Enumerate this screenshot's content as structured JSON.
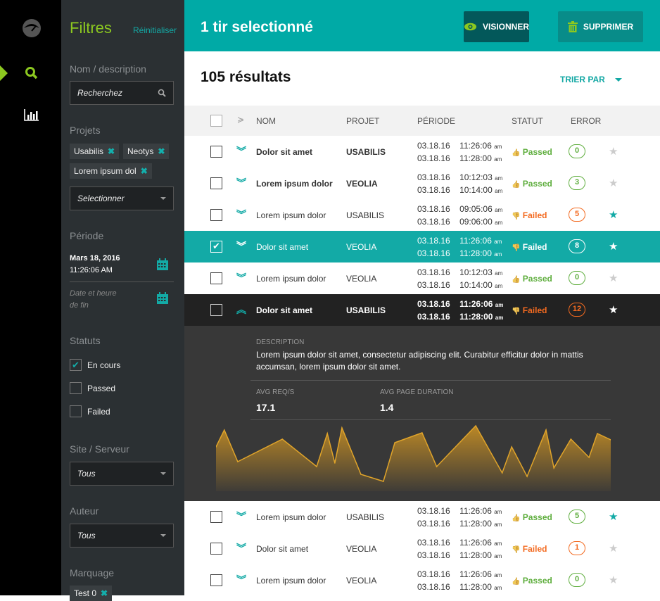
{
  "rail": {
    "icons": [
      "logo-icon",
      "search-icon",
      "chart-icon"
    ],
    "active": "search"
  },
  "sidebar": {
    "title": "Filtres",
    "reset": "Réinitialiser",
    "name_label": "Nom / description",
    "search_placeholder": "Recherchez",
    "projects_label": "Projets",
    "project_tags": [
      "Usabilis",
      "Neotys",
      "Lorem ipsum dol"
    ],
    "project_select": "Selectionner",
    "period_label": "Période",
    "start_date": "Mars 18, 2016",
    "start_time": "11:26:06 AM",
    "end_placeholder_1": "Date et heure",
    "end_placeholder_2": "de fin",
    "status_label": "Statuts",
    "statuses": [
      {
        "label": "En cours",
        "checked": true
      },
      {
        "label": "Passed",
        "checked": false
      },
      {
        "label": "Failed",
        "checked": false
      }
    ],
    "site_label": "Site / Serveur",
    "site_value": "Tous",
    "author_label": "Auteur",
    "author_value": "Tous",
    "marking_label": "Marquage",
    "marking_tags": [
      "Test 0"
    ]
  },
  "header": {
    "title": "1 tir selectionné",
    "view": "VISIONNER",
    "delete": "SUPPRIMER"
  },
  "results": {
    "count": "105 résultats",
    "sort": "TRIER PAR"
  },
  "table": {
    "columns": {
      "name": "NOM",
      "project": "PROJET",
      "period": "PÉRIODE",
      "status": "STATUT",
      "error": "ERROR"
    },
    "rows": [
      {
        "name": "Dolor sit amet",
        "project": "USABILIS",
        "d1": "03.18.16",
        "t1": "11:26:06",
        "d2": "03.18.16",
        "t2": "11:28:00",
        "ampm": "am",
        "status": "Passed",
        "error": "0",
        "starred": false,
        "bold": true,
        "selected": false,
        "expanded": false
      },
      {
        "name": "Lorem ipsum dolor",
        "project": "VEOLIA",
        "d1": "03.18.16",
        "t1": "10:12:03",
        "d2": "03.18.16",
        "t2": "10:14:00",
        "ampm": "am",
        "status": "Passed",
        "error": "3",
        "starred": false,
        "bold": true,
        "selected": false,
        "expanded": false
      },
      {
        "name": "Lorem ipsum dolor",
        "project": "USABILIS",
        "d1": "03.18.16",
        "t1": "09:05:06",
        "d2": "03.18.16",
        "t2": "09:06:00",
        "ampm": "am",
        "status": "Failed",
        "error": "5",
        "starred": true,
        "bold": false,
        "selected": false,
        "expanded": false
      },
      {
        "name": "Dolor sit amet",
        "project": "VEOLIA",
        "d1": "03.18.16",
        "t1": "11:26:06",
        "d2": "03.18.16",
        "t2": "11:28:00",
        "ampm": "am",
        "status": "Failed",
        "error": "8",
        "starred": true,
        "bold": false,
        "selected": true,
        "expanded": false
      },
      {
        "name": "Lorem ipsum dolor",
        "project": "VEOLIA",
        "d1": "03.18.16",
        "t1": "10:12:03",
        "d2": "03.18.16",
        "t2": "10:14:00",
        "ampm": "am",
        "status": "Passed",
        "error": "0",
        "starred": false,
        "bold": false,
        "selected": false,
        "expanded": false
      },
      {
        "name": "Dolor sit amet",
        "project": "USABILIS",
        "d1": "03.18.16",
        "t1": "11:26:06",
        "d2": "03.18.16",
        "t2": "11:28:00",
        "ampm": "am",
        "status": "Failed",
        "error": "12",
        "starred": true,
        "bold": true,
        "selected": false,
        "expanded": true
      },
      {
        "name": "Lorem ipsum dolor",
        "project": "USABILIS",
        "d1": "03.18.16",
        "t1": "11:26:06",
        "d2": "03.18.16",
        "t2": "11:28:00",
        "ampm": "am",
        "status": "Passed",
        "error": "5",
        "starred": true,
        "bold": false,
        "selected": false,
        "expanded": false
      },
      {
        "name": "Dolor sit amet",
        "project": "VEOLIA",
        "d1": "03.18.16",
        "t1": "11:26:06",
        "d2": "03.18.16",
        "t2": "11:28:00",
        "ampm": "am",
        "status": "Failed",
        "error": "1",
        "starred": false,
        "bold": false,
        "selected": false,
        "expanded": false
      },
      {
        "name": "Lorem ipsum dolor",
        "project": "VEOLIA",
        "d1": "03.18.16",
        "t1": "11:26:06",
        "d2": "03.18.16",
        "t2": "11:28:00",
        "ampm": "am",
        "status": "Passed",
        "error": "0",
        "starred": false,
        "bold": false,
        "selected": false,
        "expanded": false
      }
    ]
  },
  "detail": {
    "desc_label": "DESCRIPTION",
    "description": "Lorem ipsum dolor sit amet, consectetur adipiscing elit. Curabitur efficitur dolor in mattis accumsan, lorem ipsum dolor sit amet.",
    "avg_req_label": "AVG REQ/S",
    "avg_req": "17.1",
    "avg_page_label": "AVG PAGE DURATION",
    "avg_page": "1.4"
  },
  "colors": {
    "accent": "#00aaa6",
    "green": "#8cc820",
    "passed": "#5fae3e",
    "failed": "#f36a20",
    "chart": "#e0a42a"
  },
  "chart_data": {
    "type": "area",
    "x": [
      0,
      2.1,
      5.5,
      16.8,
      25.5,
      28.2,
      30.1,
      31.9,
      36.7,
      42.4,
      45.3,
      52.2,
      55.9,
      65.8,
      72.5,
      74.9,
      78.8,
      83.6,
      85.6,
      89.9,
      94.5,
      96.6,
      100
    ],
    "values": [
      53,
      77,
      32,
      64,
      25,
      72,
      30,
      80,
      14,
      4,
      59,
      73,
      25,
      83,
      16,
      53,
      11,
      77,
      23,
      64,
      38,
      72,
      63
    ],
    "grid": false,
    "axes": false
  }
}
